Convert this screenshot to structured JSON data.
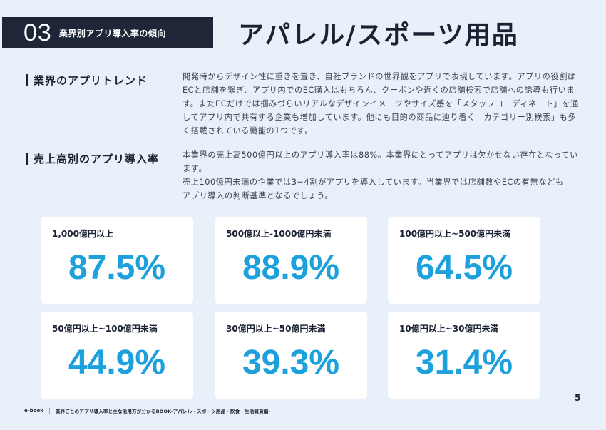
{
  "header": {
    "number": "03",
    "label": "業界別アプリ導入率の傾向"
  },
  "page_title": "アパレル/スポーツ用品",
  "sections": [
    {
      "heading": "業界のアプリトレンド",
      "body": "開発時からデザイン性に重きを置き、自社ブランドの世界観をアプリで表現しています。アプリの役割はECと店舗を繋ぎ、アプリ内でのEC購入はもちろん、クーポンや近くの店舗検索で店舗への誘導も行います。またECだけでは掴みづらいリアルなデザインイメージやサイズ感を「スタッフコーディネート」を通してアプリ内で共有する企業も増加しています。他にも目的の商品に辿り着く「カテゴリー別検索」も多く搭載されている機能の1つです。"
    },
    {
      "heading": "売上高別のアプリ導入率",
      "body_lines": [
        "本業界の売上高500億円以上のアプリ導入率は88%。本業界にとってアプリは欠かせない存在となっています。",
        "売上100億円未満の企業では3~4割がアプリを導入しています。当業界では店舗数やECの有無なども",
        "アプリ導入の判断基準となるでしょう。"
      ]
    }
  ],
  "cards": [
    {
      "label": "1,000億円以上",
      "value": "87.5%"
    },
    {
      "label": "500億以上-1000億円未満",
      "value": "88.9%"
    },
    {
      "label": "100億円以上~500億円未満",
      "value": "64.5%"
    },
    {
      "label": "50億円以上~100億円未満",
      "value": "44.9%"
    },
    {
      "label": "30億円以上~50億円未満",
      "value": "39.3%"
    },
    {
      "label": "10億円以上~30億円未満",
      "value": "31.4%"
    }
  ],
  "page_number": "5",
  "footer": {
    "ebook": "e-book",
    "description": "業界ごとのアプリ導入率と主な活用方が分かるBOOK-アパレル・スポーツ用品・飲食・生活雑貨編-"
  },
  "colors": {
    "background": "#e9f0f9",
    "header_bg": "#1e2638",
    "accent_value": "#1da1dc",
    "card_bg": "#ffffff"
  }
}
